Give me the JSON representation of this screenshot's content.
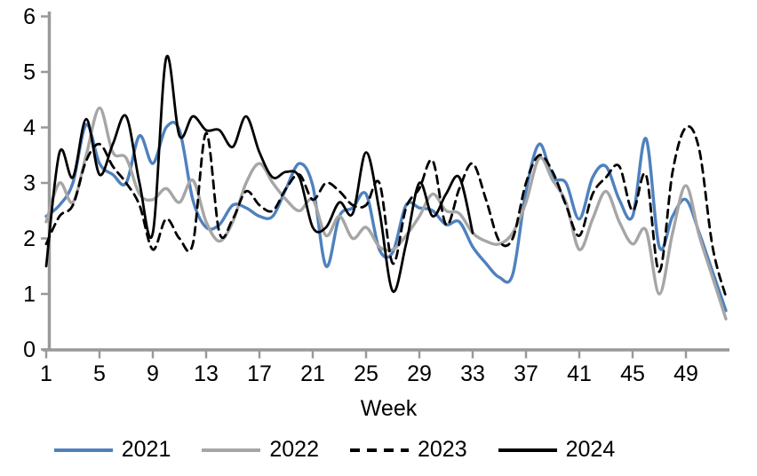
{
  "chart_data": {
    "type": "line",
    "title": "",
    "xlabel": "Week",
    "ylabel": "",
    "xlim": [
      1,
      52
    ],
    "ylim": [
      0,
      6
    ],
    "x_ticks": [
      1,
      5,
      9,
      13,
      17,
      21,
      25,
      29,
      33,
      37,
      41,
      45,
      49
    ],
    "y_ticks": [
      0,
      1,
      2,
      3,
      4,
      5,
      6
    ],
    "grid": false,
    "legend_position": "bottom",
    "axis_color": "#999999",
    "text_color": "#000000",
    "series": [
      {
        "name": "2021",
        "color": "#4f81bd",
        "style": "solid",
        "width": 3.4,
        "values": [
          2.4,
          2.6,
          3.0,
          4.05,
          3.35,
          3.15,
          3.0,
          3.85,
          3.35,
          4.0,
          3.95,
          2.7,
          2.2,
          2.25,
          2.6,
          2.55,
          2.4,
          2.4,
          2.9,
          3.35,
          2.95,
          1.5,
          2.4,
          2.55,
          2.8,
          1.8,
          1.75,
          2.6,
          2.55,
          2.5,
          2.25,
          2.3,
          1.85,
          1.55,
          1.3,
          1.35,
          2.85,
          3.7,
          3.1,
          3.0,
          2.35,
          3.1,
          3.3,
          2.7,
          2.4,
          3.8,
          1.85,
          2.4,
          2.7,
          2.1,
          1.4,
          0.7
        ]
      },
      {
        "name": "2022",
        "color": "#a6a6a6",
        "style": "solid",
        "width": 3.4,
        "values": [
          2.3,
          3.0,
          2.65,
          3.5,
          4.35,
          3.55,
          3.45,
          2.8,
          2.7,
          2.9,
          2.65,
          3.05,
          2.3,
          1.95,
          2.3,
          3.0,
          3.35,
          3.0,
          2.7,
          2.5,
          2.7,
          2.05,
          2.4,
          2.0,
          2.2,
          1.85,
          1.8,
          2.05,
          2.4,
          2.8,
          2.5,
          2.45,
          2.1,
          1.95,
          1.9,
          2.1,
          2.65,
          3.45,
          3.05,
          2.65,
          1.8,
          2.35,
          2.85,
          2.3,
          1.9,
          2.15,
          1.0,
          2.1,
          2.95,
          2.05,
          1.3,
          0.55
        ]
      },
      {
        "name": "2023",
        "color": "#000000",
        "style": "dashed",
        "width": 2.8,
        "values": [
          1.9,
          2.4,
          2.6,
          3.4,
          3.7,
          3.3,
          3.0,
          2.6,
          1.8,
          2.35,
          2.0,
          1.9,
          3.9,
          2.1,
          2.35,
          2.85,
          2.6,
          2.5,
          2.9,
          3.15,
          2.7,
          3.0,
          2.85,
          2.6,
          2.6,
          3.0,
          1.55,
          2.55,
          2.9,
          3.4,
          2.25,
          2.9,
          3.35,
          2.7,
          1.95,
          2.0,
          3.0,
          3.5,
          3.2,
          2.6,
          2.05,
          2.8,
          3.1,
          3.3,
          2.5,
          3.15,
          1.4,
          3.2,
          4.0,
          3.6,
          1.85,
          0.95
        ]
      },
      {
        "name": "2024",
        "color": "#000000",
        "style": "solid",
        "width": 2.8,
        "values": [
          1.5,
          3.55,
          3.1,
          4.15,
          3.15,
          3.7,
          4.2,
          3.0,
          2.1,
          5.25,
          3.85,
          4.2,
          3.95,
          3.95,
          3.65,
          4.2,
          3.55,
          3.1,
          3.2,
          3.1,
          2.2,
          2.2,
          2.65,
          2.45,
          3.55,
          2.5,
          1.05,
          1.9,
          3.0,
          2.4,
          2.8,
          3.1,
          2.1,
          null,
          null,
          null,
          null,
          null,
          null,
          null,
          null,
          null,
          null,
          null,
          null,
          null,
          null,
          null,
          null,
          null,
          null,
          null
        ]
      }
    ]
  }
}
